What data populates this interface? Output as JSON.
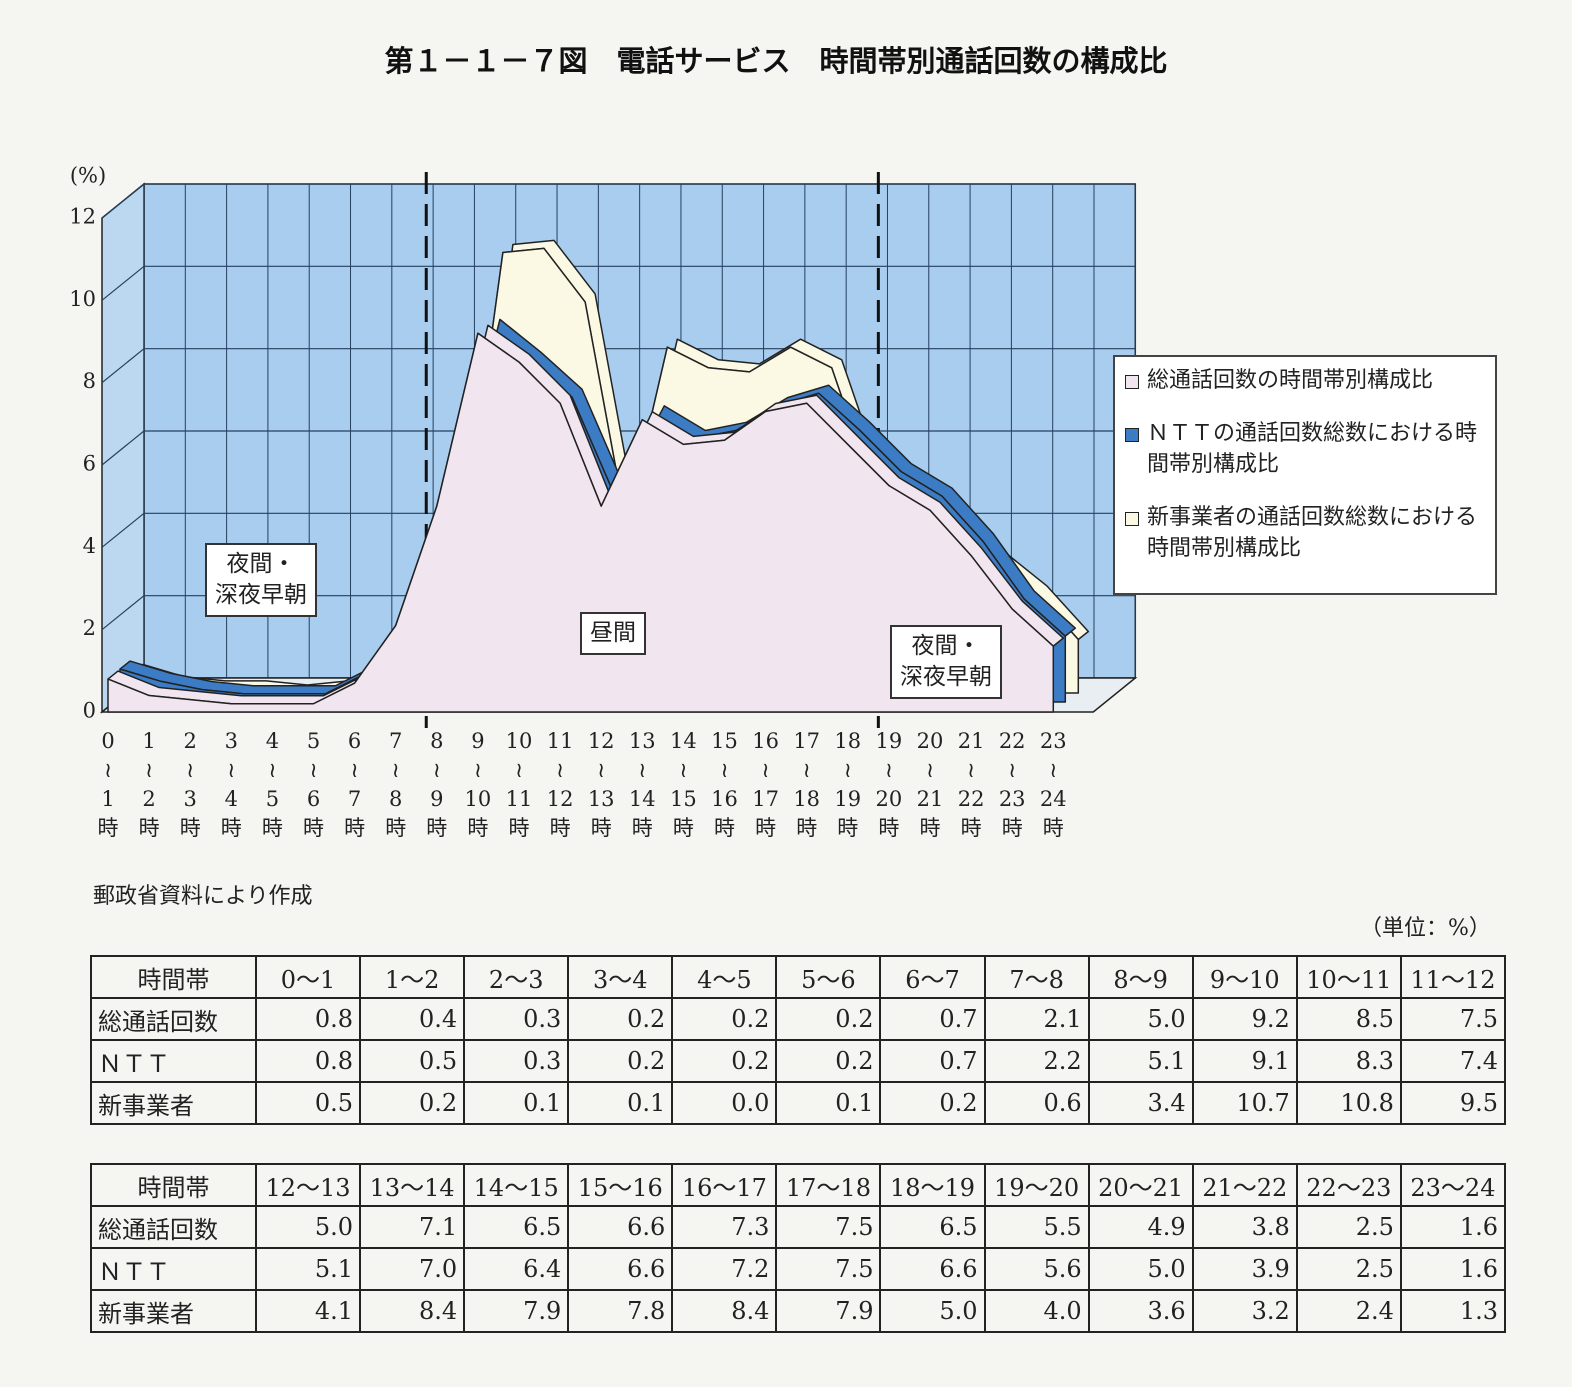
{
  "chart_data": {
    "type": "area3d",
    "title": "第１－１－７図　電話サービス　時間帯別通話回数の構成比",
    "y_label": "(%)",
    "categories": [
      "0\n≀\n1\n時",
      "1\n≀\n2\n時",
      "2\n≀\n3\n時",
      "3\n≀\n4\n時",
      "4\n≀\n5\n時",
      "5\n≀\n6\n時",
      "6\n≀\n7\n時",
      "7\n≀\n8\n時",
      "8\n≀\n9\n時",
      "9\n≀\n10\n時",
      "10\n≀\n11\n時",
      "11\n≀\n12\n時",
      "12\n≀\n13\n時",
      "13\n≀\n14\n時",
      "14\n≀\n15\n時",
      "15\n≀\n16\n時",
      "16\n≀\n17\n時",
      "17\n≀\n18\n時",
      "18\n≀\n19\n時",
      "19\n≀\n20\n時",
      "20\n≀\n21\n時",
      "21\n≀\n22\n時",
      "22\n≀\n23\n時",
      "23\n≀\n24\n時"
    ],
    "series": [
      {
        "name": "総通話回数の時間帯別構成比",
        "color": "#f1e6ef",
        "values": [
          0.8,
          0.4,
          0.3,
          0.2,
          0.2,
          0.2,
          0.7,
          2.1,
          5.0,
          9.2,
          8.5,
          7.5,
          5.0,
          7.1,
          6.5,
          6.6,
          7.3,
          7.5,
          6.5,
          5.5,
          4.9,
          3.8,
          2.5,
          1.6
        ]
      },
      {
        "name": "ＮＴＴの通話回数総数における時間帯別構成比",
        "color": "#3b7cc4",
        "values": [
          0.8,
          0.5,
          0.3,
          0.2,
          0.2,
          0.2,
          0.7,
          2.2,
          5.1,
          9.1,
          8.3,
          7.4,
          5.1,
          7.0,
          6.4,
          6.6,
          7.2,
          7.5,
          6.6,
          5.6,
          5.0,
          3.9,
          2.5,
          1.6
        ]
      },
      {
        "name": "新事業者の通話回数総数における時間帯別構成比",
        "color": "#fbf8e3",
        "values": [
          0.5,
          0.2,
          0.1,
          0.1,
          0.0,
          0.1,
          0.2,
          0.6,
          3.4,
          10.7,
          10.8,
          9.5,
          4.1,
          8.4,
          7.9,
          7.8,
          8.4,
          7.9,
          5.0,
          4.0,
          3.6,
          3.2,
          2.4,
          1.3
        ]
      }
    ],
    "ylim": [
      0,
      12
    ],
    "yticks": [
      0,
      2,
      4,
      6,
      8,
      10,
      12
    ],
    "grid": true,
    "annotations": [
      "夜間・\n深夜早朝",
      "昼間",
      "夜間・\n深夜早朝"
    ]
  },
  "source": "郵政省資料により作成",
  "unit": "（単位：%）",
  "tables": [
    {
      "rows": [
        [
          "時間帯",
          "0～1",
          "1～2",
          "2～3",
          "3～4",
          "4～5",
          "5～6",
          "6～7",
          "7～8",
          "8～9",
          "9～10",
          "10～11",
          "11～12"
        ],
        [
          "総通話回数",
          "0.8",
          "0.4",
          "0.3",
          "0.2",
          "0.2",
          "0.2",
          "0.7",
          "2.1",
          "5.0",
          "9.2",
          "8.5",
          "7.5"
        ],
        [
          "ＮＴＴ",
          "0.8",
          "0.5",
          "0.3",
          "0.2",
          "0.2",
          "0.2",
          "0.7",
          "2.2",
          "5.1",
          "9.1",
          "8.3",
          "7.4"
        ],
        [
          "新事業者",
          "0.5",
          "0.2",
          "0.1",
          "0.1",
          "0.0",
          "0.1",
          "0.2",
          "0.6",
          "3.4",
          "10.7",
          "10.8",
          "9.5"
        ]
      ]
    },
    {
      "rows": [
        [
          "時間帯",
          "12～13",
          "13～14",
          "14～15",
          "15～16",
          "16～17",
          "17～18",
          "18～19",
          "19～20",
          "20～21",
          "21～22",
          "22～23",
          "23～24"
        ],
        [
          "総通話回数",
          "5.0",
          "7.1",
          "6.5",
          "6.6",
          "7.3",
          "7.5",
          "6.5",
          "5.5",
          "4.9",
          "3.8",
          "2.5",
          "1.6"
        ],
        [
          "ＮＴＴ",
          "5.1",
          "7.0",
          "6.4",
          "6.6",
          "7.2",
          "7.5",
          "6.6",
          "5.6",
          "5.0",
          "3.9",
          "2.5",
          "1.6"
        ],
        [
          "新事業者",
          "4.1",
          "8.4",
          "7.9",
          "7.8",
          "8.4",
          "7.9",
          "5.0",
          "4.0",
          "3.6",
          "3.2",
          "2.4",
          "1.3"
        ]
      ]
    }
  ]
}
